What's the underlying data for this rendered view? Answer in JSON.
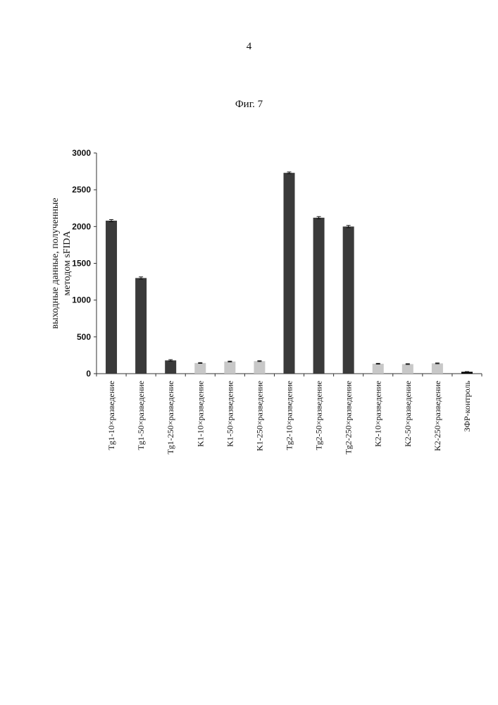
{
  "header": {
    "page_number": "4",
    "figure_caption": "Фиг. 7"
  },
  "chart_data": {
    "type": "bar",
    "ylabel_lines": [
      "выходные данные, полученные",
      "методом sFIDA"
    ],
    "ylim": [
      0,
      3000
    ],
    "yticks": [
      0,
      500,
      1000,
      1500,
      2000,
      2500,
      3000
    ],
    "grid": false,
    "error_bars": true,
    "categories": [
      "Tg1-10×разведение",
      "Tg1-50×разведение",
      "Tg1-250×разведение",
      "K1-10×разведение",
      "K1-50×разведение",
      "K1-250×разведение",
      "Tg2-10×разведение",
      "Tg2-50×разведение",
      "Tg2-250×разведение",
      "K2-10×разведение",
      "K2-50×разведение",
      "K2-250×разведение",
      "ЗФР-контроль"
    ],
    "values": [
      2080,
      1300,
      180,
      145,
      165,
      170,
      2730,
      2120,
      2000,
      135,
      130,
      140,
      25
    ],
    "errors": [
      15,
      15,
      10,
      5,
      5,
      5,
      12,
      15,
      15,
      5,
      5,
      5,
      3
    ],
    "colors": [
      "#3a3a3a",
      "#3a3a3a",
      "#3a3a3a",
      "#c8c8c8",
      "#c8c8c8",
      "#c8c8c8",
      "#3a3a3a",
      "#3a3a3a",
      "#3a3a3a",
      "#c8c8c8",
      "#c8c8c8",
      "#c8c8c8",
      "#000000"
    ]
  }
}
